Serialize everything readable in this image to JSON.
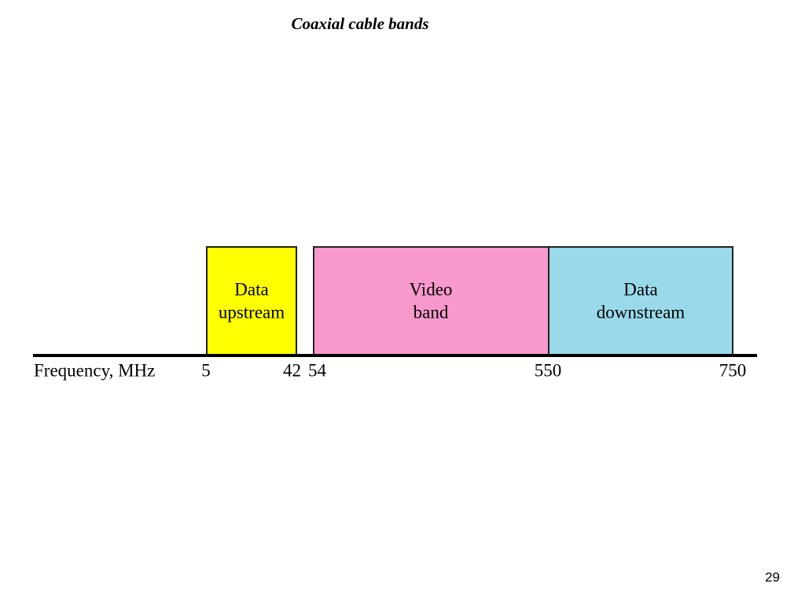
{
  "title": "Coaxial cable bands",
  "axis_label": "Frequency, MHz",
  "bands": [
    {
      "lines": [
        "Data",
        "upstream"
      ]
    },
    {
      "lines": [
        "Video",
        "band"
      ]
    },
    {
      "lines": [
        "Data",
        "downstream"
      ]
    }
  ],
  "frequencies": [
    5,
    42,
    54,
    550,
    750
  ],
  "page_number": "29"
}
